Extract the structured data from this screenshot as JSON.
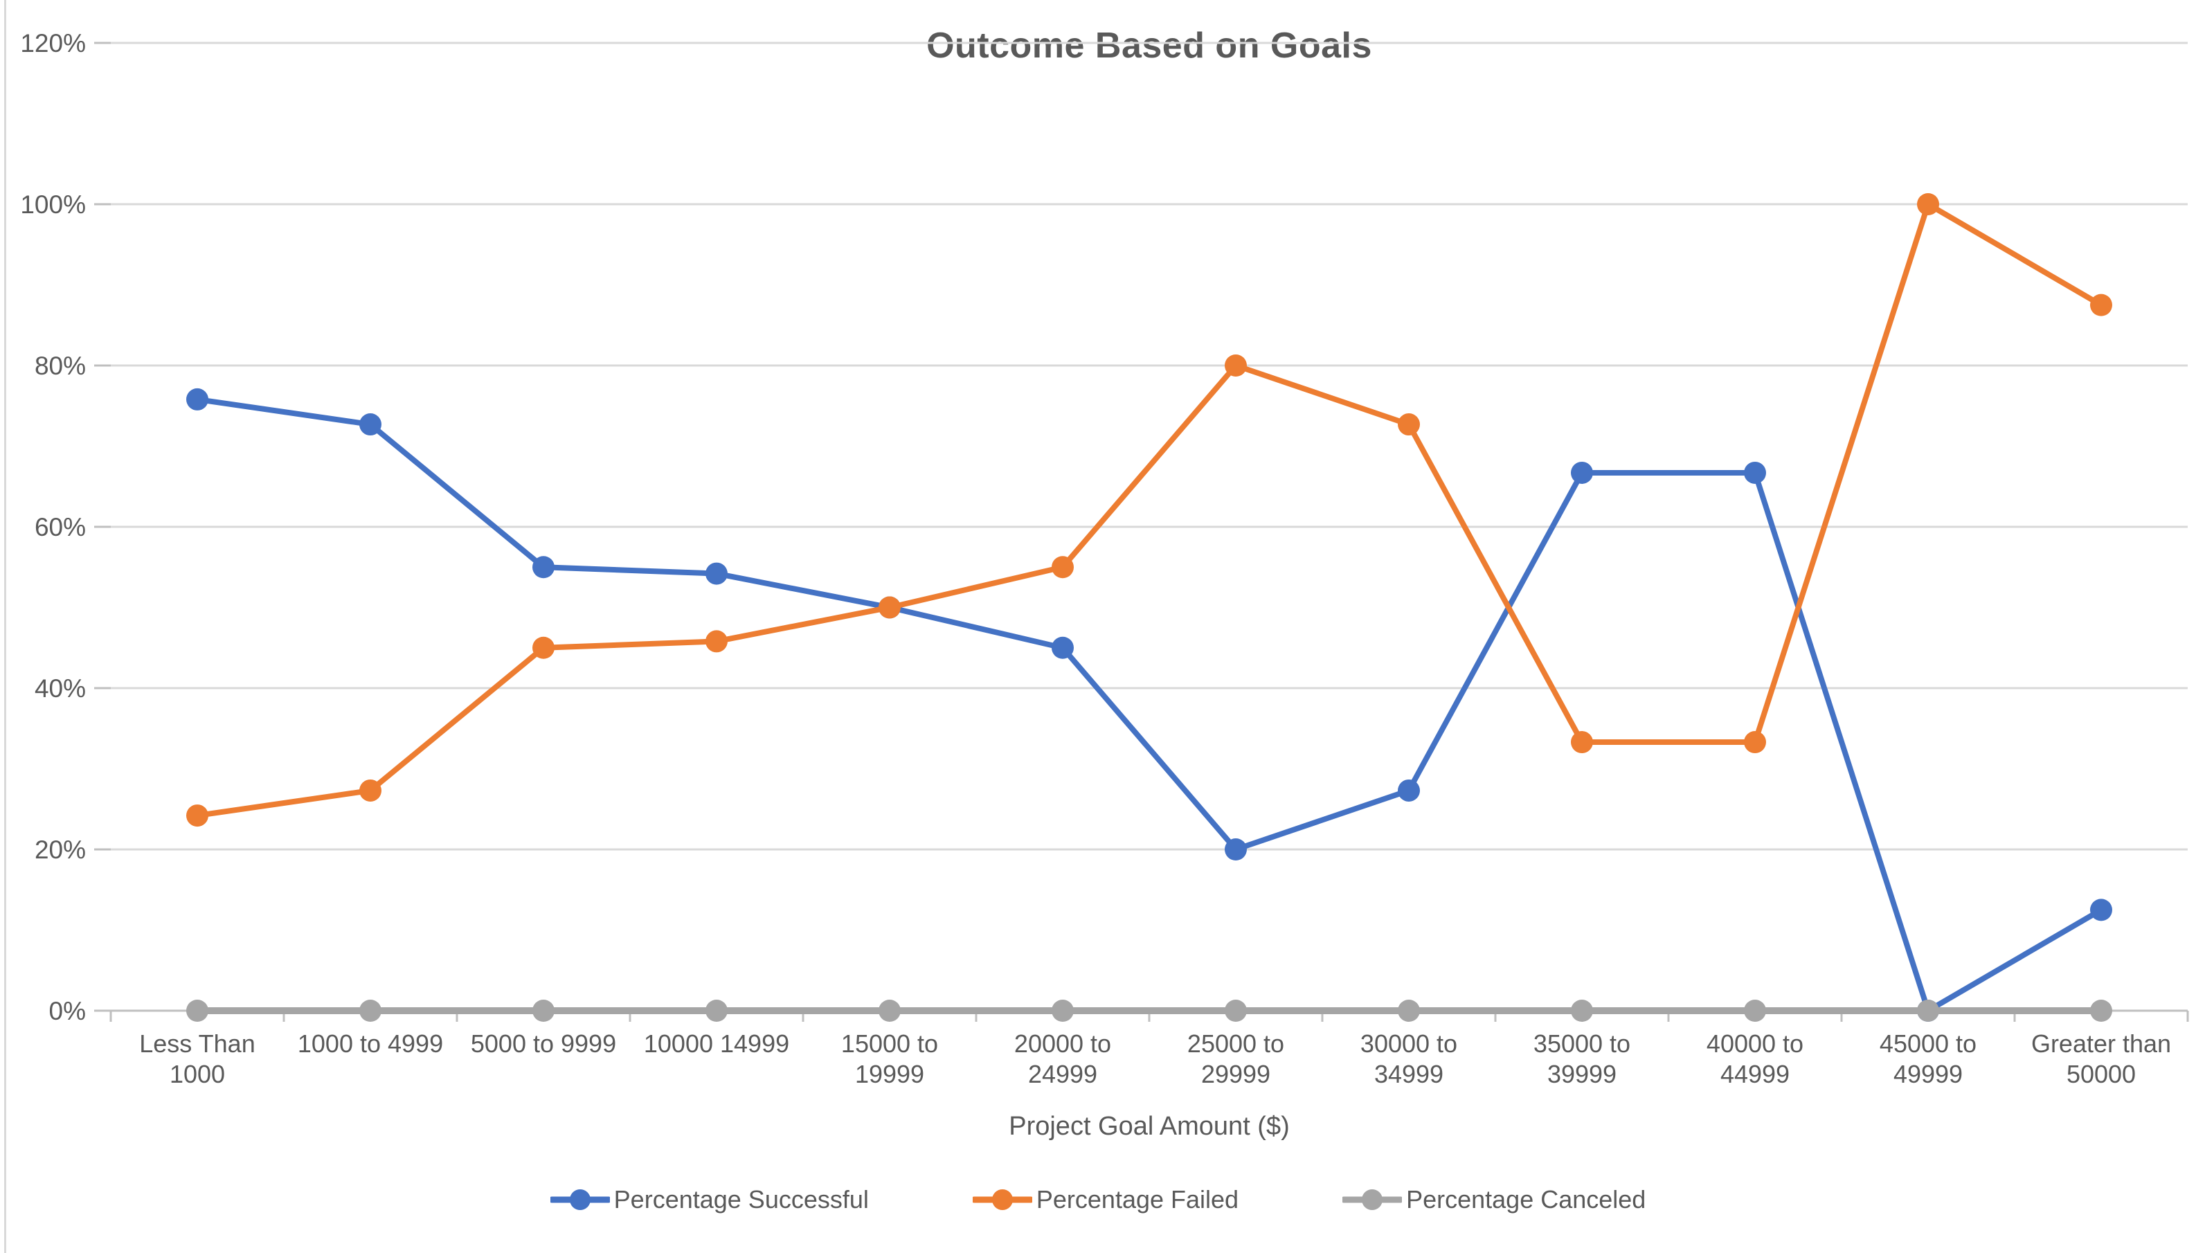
{
  "chart_data": {
    "type": "line",
    "title": "Outcome Based on Goals",
    "xlabel": "Project Goal Amount ($)",
    "ylabel": "",
    "ylim": [
      0,
      120
    ],
    "y_tick_step": 20,
    "y_ticks": [
      "0%",
      "20%",
      "40%",
      "60%",
      "80%",
      "100%",
      "120%"
    ],
    "grid": true,
    "legend_position": "bottom-center",
    "categories": [
      "Less Than 1000",
      "1000 to 4999",
      "5000 to 9999",
      "10000 14999",
      "15000 to 19999",
      "20000 to 24999",
      "25000 to 29999",
      "30000 to 34999",
      "35000 to 39999",
      "40000 to 44999",
      "45000 to 49999",
      "Greater than 50000"
    ],
    "category_label_lines": [
      [
        "Less Than",
        "1000"
      ],
      [
        "1000 to 4999"
      ],
      [
        "5000 to 9999"
      ],
      [
        "10000 14999"
      ],
      [
        "15000 to",
        "19999"
      ],
      [
        "20000 to",
        "24999"
      ],
      [
        "25000 to",
        "29999"
      ],
      [
        "30000 to",
        "34999"
      ],
      [
        "35000 to",
        "39999"
      ],
      [
        "40000 to",
        "44999"
      ],
      [
        "45000 to",
        "49999"
      ],
      [
        "Greater than",
        "50000"
      ]
    ],
    "series": [
      {
        "name": "Percentage Successful",
        "color": "#4472C4",
        "values": [
          75.8,
          72.7,
          55.0,
          54.2,
          50.0,
          45.0,
          20.0,
          27.3,
          66.7,
          66.7,
          0.0,
          12.5
        ]
      },
      {
        "name": "Percentage Failed",
        "color": "#ED7D31",
        "values": [
          24.2,
          27.3,
          45.0,
          45.8,
          50.0,
          55.0,
          80.0,
          72.7,
          33.3,
          33.3,
          100.0,
          87.5
        ]
      },
      {
        "name": "Percentage Canceled",
        "color": "#A5A5A5",
        "values": [
          0.0,
          0.0,
          0.0,
          0.0,
          0.0,
          0.0,
          0.0,
          0.0,
          0.0,
          0.0,
          0.0,
          0.0
        ]
      }
    ],
    "colors": {
      "grid": "#D9D9D9",
      "axis": "#BFBFBF",
      "text": "#595959",
      "background": "#FFFFFF",
      "chart_border": "#D9D9D9"
    }
  }
}
